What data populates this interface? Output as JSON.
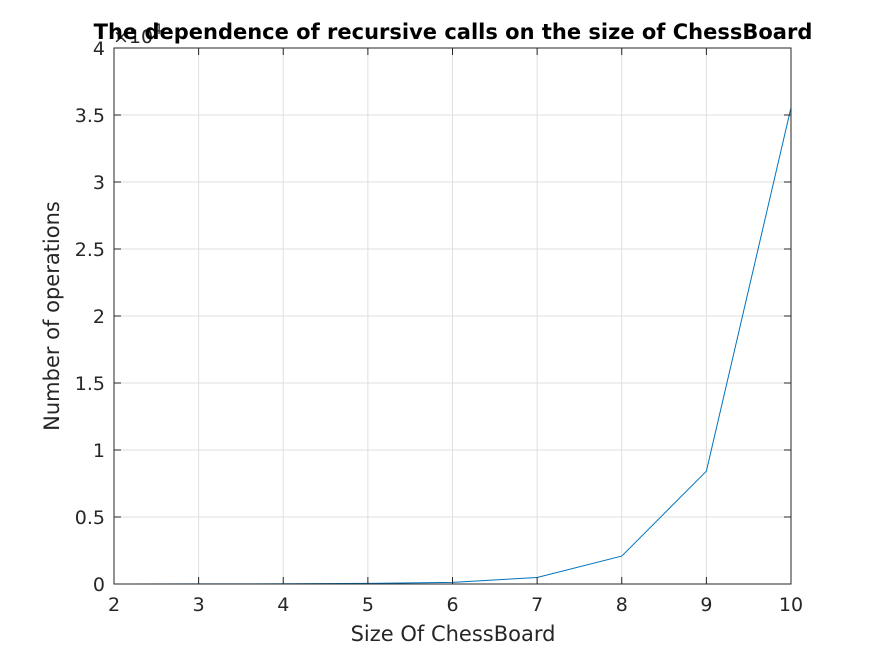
{
  "chart_data": {
    "type": "line",
    "title": "The dependence of recursive calls  on the size of ChessBoard",
    "xlabel": "Size Of ChessBoard",
    "ylabel": "Number of operations",
    "exponent_label": "×10",
    "exponent_power": "4",
    "x": [
      2,
      3,
      4,
      5,
      6,
      7,
      8,
      9,
      10
    ],
    "series": [
      {
        "values": [
          2,
          6,
          14,
          46,
          122,
          487,
          2081,
          8420,
          35553
        ]
      }
    ],
    "xlim": [
      2,
      10
    ],
    "ylim": [
      0,
      40000
    ],
    "x_ticks": [
      2,
      3,
      4,
      5,
      6,
      7,
      8,
      9,
      10
    ],
    "y_ticks": [
      0,
      5000,
      10000,
      15000,
      20000,
      25000,
      30000,
      35000,
      40000
    ],
    "y_tick_labels": [
      "0",
      "0.5",
      "1",
      "1.5",
      "2",
      "2.5",
      "3",
      "3.5",
      "4"
    ],
    "grid": true,
    "line_color": "#0072bd",
    "grid_color": "#dfdfdf",
    "axis_color": "#262626"
  }
}
